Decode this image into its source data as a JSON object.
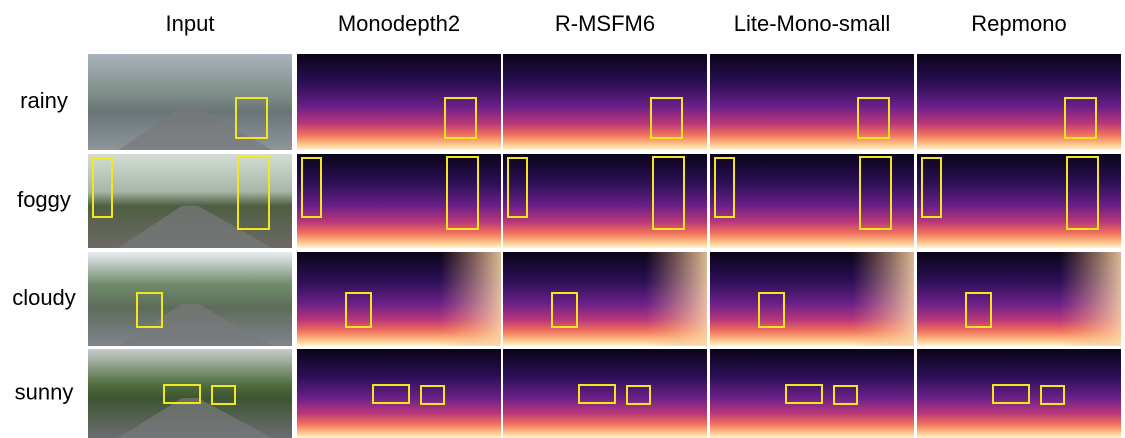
{
  "columns": [
    "Input",
    "Monodepth2",
    "R-MSFM6",
    "Lite-Mono-small",
    "Repmono"
  ],
  "rows": [
    "rainy",
    "foggy",
    "cloudy",
    "sunny"
  ]
}
